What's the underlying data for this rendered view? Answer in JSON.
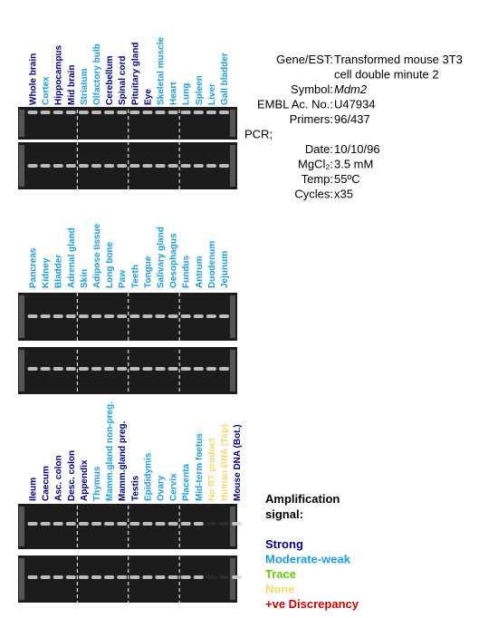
{
  "panels": [
    {
      "lanes": [
        {
          "label": "Whole brain",
          "color": "#000080"
        },
        {
          "label": "Cortex",
          "color": "#1a9fdb"
        },
        {
          "label": "Hippocampus",
          "color": "#000080"
        },
        {
          "label": "Mid brain",
          "color": "#000080"
        },
        {
          "label": "Striatum",
          "color": "#1a9fdb"
        },
        {
          "label": "Olfactory bulb",
          "color": "#1a9fdb"
        },
        {
          "label": "Cerebellum",
          "color": "#000080"
        },
        {
          "label": "Spinal cord",
          "color": "#000080"
        },
        {
          "label": "Pituitary gland",
          "color": "#000080"
        },
        {
          "label": "Eye",
          "color": "#000080"
        },
        {
          "label": "Skeletal muscle",
          "color": "#1a9fdb"
        },
        {
          "label": "Heart",
          "color": "#1a9fdb"
        },
        {
          "label": "Lung",
          "color": "#1a9fdb"
        },
        {
          "label": "Spleen",
          "color": "#1a9fdb"
        },
        {
          "label": "Liver",
          "color": "#1a9fdb"
        },
        {
          "label": "Gall bladder",
          "color": "#1a9fdb"
        }
      ]
    },
    {
      "lanes": [
        {
          "label": "Pancreas",
          "color": "#1a9fdb"
        },
        {
          "label": "Kidney",
          "color": "#1a9fdb"
        },
        {
          "label": "Bladder",
          "color": "#1a9fdb"
        },
        {
          "label": "Adrenal gland",
          "color": "#1a9fdb"
        },
        {
          "label": "Skin",
          "color": "#1a9fdb"
        },
        {
          "label": "Adipose tissue",
          "color": "#1a9fdb"
        },
        {
          "label": "Long bone",
          "color": "#1a9fdb"
        },
        {
          "label": "Paw",
          "color": "#1a9fdb"
        },
        {
          "label": "Teeth",
          "color": "#1a9fdb"
        },
        {
          "label": "Tongue",
          "color": "#1a9fdb"
        },
        {
          "label": "Salivary gland",
          "color": "#1a9fdb"
        },
        {
          "label": "Oesophagus",
          "color": "#1a9fdb"
        },
        {
          "label": "Fundus",
          "color": "#1a9fdb"
        },
        {
          "label": "Antrum",
          "color": "#1a9fdb"
        },
        {
          "label": "Duodenum",
          "color": "#1a9fdb"
        },
        {
          "label": "Jejunum",
          "color": "#1a9fdb"
        }
      ]
    },
    {
      "lanes": [
        {
          "label": "Ileum",
          "color": "#000080"
        },
        {
          "label": "Caecum",
          "color": "#000080"
        },
        {
          "label": "Asc. colon",
          "color": "#000080"
        },
        {
          "label": "Desc. colon",
          "color": "#000080"
        },
        {
          "label": "Appendix",
          "color": "#000080"
        },
        {
          "label": "Thymus",
          "color": "#1a9fdb"
        },
        {
          "label": "Mamm.gland non-preg.",
          "color": "#1a9fdb"
        },
        {
          "label": "Mamm.gland preg.",
          "color": "#000080"
        },
        {
          "label": "Testis",
          "color": "#000080"
        },
        {
          "label": "Epididymis",
          "color": "#1a9fdb"
        },
        {
          "label": "Ovary",
          "color": "#1a9fdb"
        },
        {
          "label": "Cervix",
          "color": "#1a9fdb"
        },
        {
          "label": "Placenta",
          "color": "#1a9fdb"
        },
        {
          "label": "Mid-term foetus",
          "color": "#1a9fdb"
        },
        {
          "label": "No RT product",
          "color": "#f5d76e"
        },
        {
          "label": "Human DNA (Top)",
          "color": "#f5d76e"
        },
        {
          "label": "Mouse DNA (Bot.)",
          "color": "#000080"
        }
      ]
    }
  ],
  "info": {
    "rows": [
      {
        "label": "Gene/EST:",
        "value": [
          "Transformed mouse 3T3",
          "cell double minute 2"
        ]
      },
      {
        "label": "Symbol:",
        "value": [
          "Mdm2"
        ],
        "italic": true
      },
      {
        "label": "EMBL Ac. No.:",
        "value": [
          "U47934"
        ]
      },
      {
        "label": "Primers:",
        "value": [
          "96/437"
        ]
      },
      {
        "label": "PCR;",
        "value": []
      },
      {
        "label": "Date:",
        "value": [
          "10/10/96"
        ]
      },
      {
        "label": "MgCl₂:",
        "value": [
          "3.5 mM"
        ]
      },
      {
        "label": "Temp:",
        "value": [
          "55ºC"
        ]
      },
      {
        "label": "Cycles:",
        "value": [
          "x35"
        ]
      }
    ]
  },
  "legend": {
    "title": [
      "Amplification",
      "signal:"
    ],
    "items": [
      {
        "label": "Strong",
        "color": "#000080"
      },
      {
        "label": "Moderate-weak",
        "color": "#1a9fdb"
      },
      {
        "label": "Trace",
        "color": "#66cc00"
      },
      {
        "label": "None",
        "color": "#f5d76e"
      },
      {
        "label": "+ve Discrepancy",
        "color": "#cc0000"
      }
    ]
  }
}
